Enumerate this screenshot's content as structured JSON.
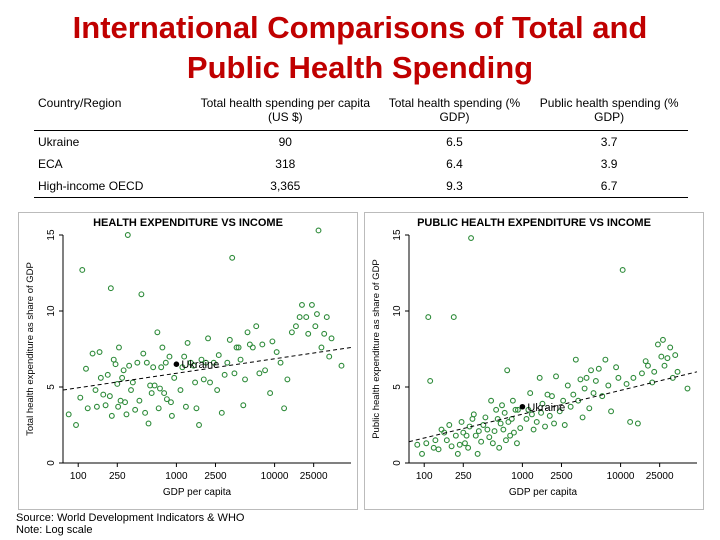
{
  "page": {
    "title_line1": "International Comparisons of Total and",
    "title_line2": "Public Health Spending"
  },
  "table": {
    "headers": [
      "Country/Region",
      "Total health spending per capita (US $)",
      "Total health spending (% GDP)",
      "Public health spending (% GDP)"
    ],
    "rows": [
      [
        "Ukraine",
        "90",
        "6.5",
        "3.7"
      ],
      [
        "ECA",
        "318",
        "6.4",
        "3.9"
      ],
      [
        "High-income OECD",
        "3,365",
        "9.3",
        "6.7"
      ]
    ]
  },
  "notes": {
    "source": "Source: World Development Indicators & WHO",
    "note": "Note: Log scale"
  },
  "chart_data": [
    {
      "type": "scatter",
      "title": "HEALTH EXPENDITURE VS INCOME",
      "xlabel": "GDP per capita",
      "ylabel": "Total health expenditure as share of GDP",
      "xscale": "log",
      "xlim": [
        70,
        60000
      ],
      "ylim": [
        0,
        15
      ],
      "xticks": [
        100,
        250,
        1000,
        2500,
        10000,
        25000
      ],
      "xtick_labels": [
        "100",
        "250",
        "1000",
        "2500",
        "10000",
        "25000"
      ],
      "yticks": [
        0,
        5,
        10,
        15
      ],
      "point_color": "#2e8b3a",
      "trend_color": "#000000",
      "trendline": {
        "x": [
          70,
          60000
        ],
        "y": [
          4.8,
          7.6
        ],
        "style": "dashed"
      },
      "highlight": {
        "label": "Ukraine",
        "x": 1000,
        "y": 6.5
      },
      "points": [
        [
          80,
          3.2
        ],
        [
          95,
          2.5
        ],
        [
          105,
          4.3
        ],
        [
          110,
          12.7
        ],
        [
          120,
          6.2
        ],
        [
          125,
          3.6
        ],
        [
          140,
          7.2
        ],
        [
          150,
          4.8
        ],
        [
          155,
          3.7
        ],
        [
          165,
          7.3
        ],
        [
          170,
          5.6
        ],
        [
          180,
          4.5
        ],
        [
          190,
          3.8
        ],
        [
          200,
          5.8
        ],
        [
          210,
          4.4
        ],
        [
          215,
          11.5
        ],
        [
          220,
          3.1
        ],
        [
          230,
          6.8
        ],
        [
          240,
          6.5
        ],
        [
          250,
          5.2
        ],
        [
          255,
          3.7
        ],
        [
          260,
          7.6
        ],
        [
          270,
          4.1
        ],
        [
          280,
          5.6
        ],
        [
          290,
          6.1
        ],
        [
          300,
          4.0
        ],
        [
          310,
          3.2
        ],
        [
          320,
          15.0
        ],
        [
          330,
          6.4
        ],
        [
          345,
          4.8
        ],
        [
          360,
          5.3
        ],
        [
          380,
          3.5
        ],
        [
          400,
          6.6
        ],
        [
          420,
          4.1
        ],
        [
          440,
          11.1
        ],
        [
          460,
          7.2
        ],
        [
          480,
          3.3
        ],
        [
          500,
          6.6
        ],
        [
          520,
          2.6
        ],
        [
          540,
          5.1
        ],
        [
          560,
          4.6
        ],
        [
          580,
          6.3
        ],
        [
          600,
          5.1
        ],
        [
          640,
          8.6
        ],
        [
          660,
          3.6
        ],
        [
          680,
          4.9
        ],
        [
          700,
          6.3
        ],
        [
          720,
          7.6
        ],
        [
          750,
          4.6
        ],
        [
          780,
          6.6
        ],
        [
          800,
          4.2
        ],
        [
          850,
          7.0
        ],
        [
          880,
          4.0
        ],
        [
          900,
          3.1
        ],
        [
          950,
          5.6
        ],
        [
          1100,
          4.8
        ],
        [
          1150,
          6.3
        ],
        [
          1200,
          7.0
        ],
        [
          1250,
          3.7
        ],
        [
          1300,
          7.9
        ],
        [
          1400,
          6.6
        ],
        [
          1500,
          6.4
        ],
        [
          1550,
          5.3
        ],
        [
          1600,
          3.6
        ],
        [
          1700,
          2.5
        ],
        [
          1800,
          6.8
        ],
        [
          1900,
          5.5
        ],
        [
          2000,
          6.6
        ],
        [
          2100,
          8.2
        ],
        [
          2200,
          5.3
        ],
        [
          2400,
          6.6
        ],
        [
          2600,
          4.8
        ],
        [
          2700,
          7.1
        ],
        [
          2900,
          3.3
        ],
        [
          3100,
          5.8
        ],
        [
          3300,
          6.6
        ],
        [
          3500,
          8.1
        ],
        [
          3700,
          13.5
        ],
        [
          3900,
          5.9
        ],
        [
          4100,
          7.6
        ],
        [
          4300,
          7.6
        ],
        [
          4500,
          6.8
        ],
        [
          4800,
          3.8
        ],
        [
          5000,
          5.5
        ],
        [
          5300,
          8.6
        ],
        [
          5600,
          7.8
        ],
        [
          6000,
          7.6
        ],
        [
          6500,
          9.0
        ],
        [
          7000,
          5.9
        ],
        [
          7500,
          7.8
        ],
        [
          8000,
          6.1
        ],
        [
          9000,
          4.6
        ],
        [
          9500,
          8.0
        ],
        [
          10500,
          7.3
        ],
        [
          11500,
          6.6
        ],
        [
          12500,
          3.6
        ],
        [
          13500,
          5.5
        ],
        [
          15000,
          8.6
        ],
        [
          16500,
          9.0
        ],
        [
          18000,
          9.6
        ],
        [
          19000,
          10.4
        ],
        [
          21000,
          9.6
        ],
        [
          22000,
          8.5
        ],
        [
          24000,
          10.4
        ],
        [
          26000,
          9.0
        ],
        [
          27000,
          9.8
        ],
        [
          28000,
          15.3
        ],
        [
          30000,
          7.6
        ],
        [
          32000,
          8.5
        ],
        [
          34000,
          9.6
        ],
        [
          36000,
          7.0
        ],
        [
          38000,
          8.2
        ],
        [
          48000,
          6.4
        ]
      ]
    },
    {
      "type": "scatter",
      "title": "PUBLIC HEALTH EXPENDITURE VS INCOME",
      "xlabel": "GDP per capita",
      "ylabel": "Public health expenditure as share of GDP",
      "xscale": "log",
      "xlim": [
        70,
        60000
      ],
      "ylim": [
        0,
        15
      ],
      "xticks": [
        100,
        250,
        1000,
        2500,
        10000,
        25000
      ],
      "xtick_labels": [
        "100",
        "250",
        "1000",
        "2500",
        "10000",
        "25000"
      ],
      "yticks": [
        0,
        5,
        10,
        15
      ],
      "point_color": "#2e8b3a",
      "trend_color": "#000000",
      "trendline": {
        "x": [
          70,
          60000
        ],
        "y": [
          1.4,
          6.0
        ],
        "style": "dashed"
      },
      "highlight": {
        "label": "Ukraine",
        "x": 1000,
        "y": 3.7
      },
      "points": [
        [
          85,
          1.2
        ],
        [
          95,
          0.6
        ],
        [
          105,
          1.3
        ],
        [
          110,
          9.6
        ],
        [
          115,
          5.4
        ],
        [
          125,
          1.0
        ],
        [
          130,
          1.5
        ],
        [
          140,
          0.9
        ],
        [
          150,
          2.2
        ],
        [
          160,
          2.0
        ],
        [
          170,
          1.5
        ],
        [
          180,
          2.5
        ],
        [
          190,
          1.1
        ],
        [
          200,
          9.6
        ],
        [
          210,
          1.8
        ],
        [
          220,
          0.6
        ],
        [
          230,
          1.2
        ],
        [
          240,
          2.7
        ],
        [
          250,
          2.0
        ],
        [
          260,
          1.3
        ],
        [
          270,
          1.8
        ],
        [
          280,
          1.0
        ],
        [
          290,
          2.4
        ],
        [
          300,
          14.8
        ],
        [
          310,
          2.9
        ],
        [
          320,
          3.2
        ],
        [
          335,
          1.8
        ],
        [
          350,
          0.6
        ],
        [
          360,
          2.1
        ],
        [
          380,
          1.4
        ],
        [
          400,
          2.5
        ],
        [
          420,
          3.0
        ],
        [
          440,
          2.2
        ],
        [
          460,
          1.7
        ],
        [
          480,
          4.1
        ],
        [
          500,
          1.3
        ],
        [
          520,
          2.1
        ],
        [
          540,
          3.5
        ],
        [
          560,
          2.9
        ],
        [
          580,
          1.0
        ],
        [
          600,
          2.6
        ],
        [
          620,
          3.8
        ],
        [
          640,
          2.2
        ],
        [
          660,
          3.3
        ],
        [
          680,
          1.5
        ],
        [
          700,
          6.1
        ],
        [
          720,
          2.7
        ],
        [
          750,
          1.8
        ],
        [
          780,
          2.9
        ],
        [
          800,
          4.1
        ],
        [
          820,
          2.0
        ],
        [
          850,
          3.5
        ],
        [
          880,
          1.3
        ],
        [
          900,
          3.5
        ],
        [
          950,
          2.3
        ],
        [
          1100,
          2.9
        ],
        [
          1150,
          3.5
        ],
        [
          1200,
          4.6
        ],
        [
          1250,
          3.2
        ],
        [
          1300,
          2.2
        ],
        [
          1400,
          2.7
        ],
        [
          1500,
          5.6
        ],
        [
          1550,
          3.3
        ],
        [
          1600,
          3.9
        ],
        [
          1700,
          2.4
        ],
        [
          1800,
          4.5
        ],
        [
          1900,
          3.1
        ],
        [
          2000,
          4.4
        ],
        [
          2100,
          2.6
        ],
        [
          2200,
          5.7
        ],
        [
          2400,
          3.4
        ],
        [
          2600,
          4.1
        ],
        [
          2700,
          2.5
        ],
        [
          2900,
          5.1
        ],
        [
          3100,
          3.7
        ],
        [
          3300,
          4.5
        ],
        [
          3500,
          6.8
        ],
        [
          3700,
          4.1
        ],
        [
          3900,
          5.5
        ],
        [
          4100,
          3.0
        ],
        [
          4300,
          4.9
        ],
        [
          4500,
          5.6
        ],
        [
          4800,
          3.6
        ],
        [
          5000,
          6.1
        ],
        [
          5300,
          4.6
        ],
        [
          5600,
          5.4
        ],
        [
          6000,
          6.2
        ],
        [
          6500,
          4.4
        ],
        [
          7000,
          6.8
        ],
        [
          7500,
          5.1
        ],
        [
          8000,
          3.4
        ],
        [
          9000,
          6.3
        ],
        [
          9500,
          5.6
        ],
        [
          10500,
          12.7
        ],
        [
          11500,
          5.2
        ],
        [
          12500,
          2.7
        ],
        [
          13500,
          5.6
        ],
        [
          15000,
          2.6
        ],
        [
          16500,
          5.9
        ],
        [
          18000,
          6.7
        ],
        [
          19000,
          6.4
        ],
        [
          21000,
          5.3
        ],
        [
          22000,
          6.0
        ],
        [
          24000,
          7.8
        ],
        [
          26000,
          7.0
        ],
        [
          27000,
          8.1
        ],
        [
          28000,
          6.4
        ],
        [
          30000,
          6.9
        ],
        [
          32000,
          7.6
        ],
        [
          34000,
          5.6
        ],
        [
          36000,
          7.1
        ],
        [
          38000,
          6.0
        ],
        [
          48000,
          4.9
        ]
      ]
    }
  ]
}
